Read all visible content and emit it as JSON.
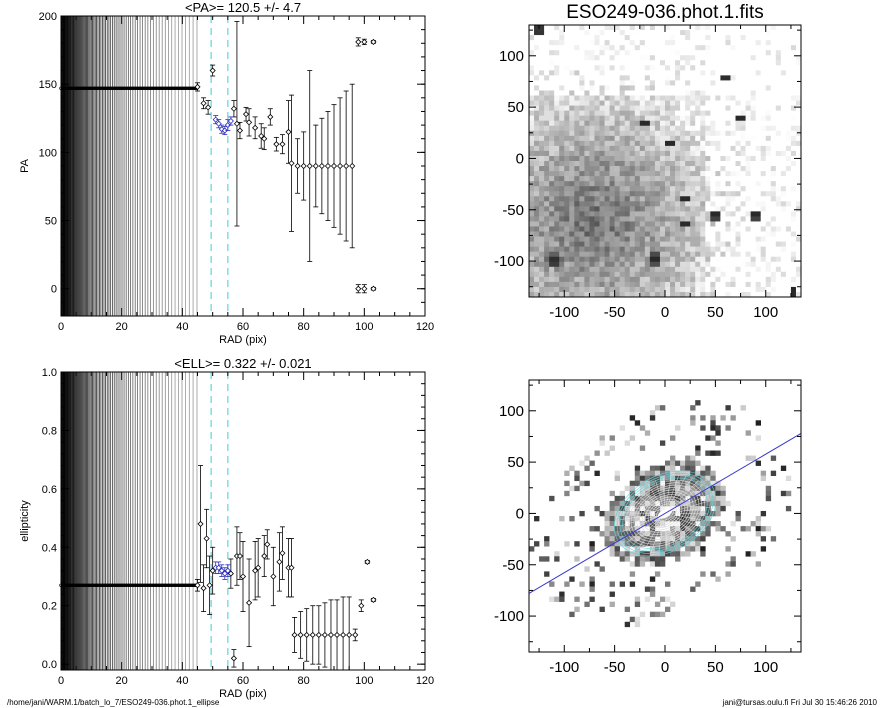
{
  "footer": {
    "left": "/home/jani/WARM.1/batch_lo_7/ESO249-036.phot.1_ellipse",
    "right": "jani@tursas.oulu.fi  Fri Jul 30 15:46:26 2010"
  },
  "chart_data": [
    {
      "type": "scatter",
      "title": "<PA>= 120.5 +/-   4.7",
      "xlabel": "RAD (pix)",
      "ylabel": "PA",
      "xlim": [
        0,
        120
      ],
      "ylim": [
        -20,
        200
      ],
      "xticks": [
        "0",
        "20",
        "40",
        "60",
        "80",
        "100",
        "120"
      ],
      "yticks": [
        "0",
        "50",
        "100",
        "150",
        "200"
      ],
      "ytick_values": [
        0,
        50,
        100,
        150,
        200
      ],
      "vlines_dashed": [
        49.5,
        55
      ],
      "band": {
        "x": [
          0,
          45
        ],
        "y": 147
      },
      "series": [
        {
          "color": "#000000",
          "points": [
            {
              "x": 45,
              "y": 148,
              "err": 3
            },
            {
              "x": 47,
              "y": 136,
              "err": 4
            },
            {
              "x": 48.5,
              "y": 133,
              "err": 5
            },
            {
              "x": 50,
              "y": 160,
              "err": 4
            },
            {
              "x": 57,
              "y": 132,
              "err": 6
            },
            {
              "x": 58,
              "y": 121,
              "err": 75
            },
            {
              "x": 59,
              "y": 116,
              "err": 6
            },
            {
              "x": 61,
              "y": 128,
              "err": 5
            },
            {
              "x": 62,
              "y": 122,
              "err": 10
            },
            {
              "x": 64,
              "y": 118,
              "err": 8
            },
            {
              "x": 66,
              "y": 112,
              "err": 9
            },
            {
              "x": 67,
              "y": 110,
              "err": 8
            },
            {
              "x": 69,
              "y": 126,
              "err": 6
            },
            {
              "x": 71,
              "y": 106,
              "err": 5
            },
            {
              "x": 73,
              "y": 106,
              "err": 7
            },
            {
              "x": 75,
              "y": 115,
              "err": 23
            },
            {
              "x": 76,
              "y": 92,
              "err": 50
            },
            {
              "x": 78,
              "y": 90,
              "err": 20
            },
            {
              "x": 80,
              "y": 90,
              "err": 25
            },
            {
              "x": 82,
              "y": 90,
              "err": 70
            },
            {
              "x": 84,
              "y": 90,
              "err": 30
            },
            {
              "x": 86,
              "y": 90,
              "err": 35
            },
            {
              "x": 88,
              "y": 90,
              "err": 40
            },
            {
              "x": 90,
              "y": 90,
              "err": 45
            },
            {
              "x": 92,
              "y": 90,
              "err": 50
            },
            {
              "x": 94,
              "y": 90,
              "err": 55
            },
            {
              "x": 96,
              "y": 90,
              "err": 60
            },
            {
              "x": 98,
              "y": 181,
              "err": 3
            },
            {
              "x": 100,
              "y": 181,
              "err": 2
            },
            {
              "x": 103,
              "y": 181,
              "err": 1
            },
            {
              "x": 98,
              "y": 0,
              "err": 3
            },
            {
              "x": 100,
              "y": 0,
              "err": 3
            },
            {
              "x": 103,
              "y": 0,
              "err": 1
            }
          ]
        },
        {
          "color": "#2b2bbf",
          "points": [
            {
              "x": 51,
              "y": 124,
              "err": 3
            },
            {
              "x": 52,
              "y": 121,
              "err": 3
            },
            {
              "x": 53,
              "y": 117,
              "err": 3
            },
            {
              "x": 54,
              "y": 116,
              "err": 3
            },
            {
              "x": 55,
              "y": 120,
              "err": 4
            },
            {
              "x": 56,
              "y": 123,
              "err": 3
            }
          ]
        }
      ]
    },
    {
      "type": "scatter",
      "title": "<ELL>= 0.322 +/-  0.021",
      "xlabel": "RAD (pix)",
      "ylabel": "ellipticity",
      "xlim": [
        0,
        120
      ],
      "ylim": [
        -0.02,
        1.0
      ],
      "xticks": [
        "0",
        "20",
        "40",
        "60",
        "80",
        "100",
        "120"
      ],
      "yticks": [
        "0.0",
        "0.2",
        "0.4",
        "0.6",
        "0.8",
        "1.0"
      ],
      "ytick_values": [
        0.0,
        0.2,
        0.4,
        0.6,
        0.8,
        1.0
      ],
      "vlines_dashed": [
        49.5,
        55
      ],
      "band": {
        "x": [
          0,
          45
        ],
        "y": 0.27
      },
      "series": [
        {
          "color": "#000000",
          "points": [
            {
              "x": 45,
              "y": 0.27,
              "err": 0.02
            },
            {
              "x": 46,
              "y": 0.48,
              "err": 0.2
            },
            {
              "x": 47,
              "y": 0.26,
              "err": 0.08
            },
            {
              "x": 48,
              "y": 0.43,
              "err": 0.1
            },
            {
              "x": 49,
              "y": 0.27,
              "err": 0.1
            },
            {
              "x": 50,
              "y": 0.32,
              "err": 0.08
            },
            {
              "x": 56,
              "y": 0.31,
              "err": 0.05
            },
            {
              "x": 57,
              "y": 0.02,
              "err": 0.03
            },
            {
              "x": 58,
              "y": 0.37,
              "err": 0.1
            },
            {
              "x": 59,
              "y": 0.37,
              "err": 0.08
            },
            {
              "x": 60,
              "y": 0.3,
              "err": 0.12
            },
            {
              "x": 62,
              "y": 0.21,
              "err": 0.15
            },
            {
              "x": 64,
              "y": 0.32,
              "err": 0.1
            },
            {
              "x": 65,
              "y": 0.33,
              "err": 0.1
            },
            {
              "x": 67,
              "y": 0.37,
              "err": 0.07
            },
            {
              "x": 68,
              "y": 0.41,
              "err": 0.05
            },
            {
              "x": 70,
              "y": 0.3,
              "err": 0.1
            },
            {
              "x": 72,
              "y": 0.35,
              "err": 0.1
            },
            {
              "x": 73,
              "y": 0.38,
              "err": 0.09
            },
            {
              "x": 75,
              "y": 0.33,
              "err": 0.1
            },
            {
              "x": 76,
              "y": 0.33,
              "err": 0.1
            },
            {
              "x": 77,
              "y": 0.1,
              "err": 0.06
            },
            {
              "x": 79,
              "y": 0.1,
              "err": 0.08
            },
            {
              "x": 81,
              "y": 0.1,
              "err": 0.09
            },
            {
              "x": 83,
              "y": 0.1,
              "err": 0.1
            },
            {
              "x": 85,
              "y": 0.1,
              "err": 0.1
            },
            {
              "x": 87,
              "y": 0.1,
              "err": 0.11
            },
            {
              "x": 89,
              "y": 0.1,
              "err": 0.12
            },
            {
              "x": 91,
              "y": 0.1,
              "err": 0.12
            },
            {
              "x": 93,
              "y": 0.1,
              "err": 0.13
            },
            {
              "x": 95,
              "y": 0.1,
              "err": 0.13
            },
            {
              "x": 97,
              "y": 0.1,
              "err": 0.02
            },
            {
              "x": 99,
              "y": 0.2,
              "err": 0.02
            },
            {
              "x": 101,
              "y": 0.35,
              "err": 0.005
            },
            {
              "x": 103,
              "y": 0.22,
              "err": 0.005
            }
          ]
        },
        {
          "color": "#2b2bbf",
          "points": [
            {
              "x": 51,
              "y": 0.33,
              "err": 0.02
            },
            {
              "x": 52,
              "y": 0.33,
              "err": 0.02
            },
            {
              "x": 53,
              "y": 0.32,
              "err": 0.02
            },
            {
              "x": 54,
              "y": 0.31,
              "err": 0.02
            },
            {
              "x": 55,
              "y": 0.32,
              "err": 0.02
            }
          ]
        }
      ]
    },
    {
      "type": "heatmap",
      "title": "ESO249-036.phot.1.fits",
      "xlim": [
        -135,
        135
      ],
      "ylim": [
        -135,
        130
      ],
      "xticks": [
        "-100",
        "-50",
        "0",
        "50",
        "100"
      ],
      "xtick_values": [
        -100,
        -50,
        0,
        50,
        100
      ],
      "yticks": [
        "-100",
        "-50",
        "0",
        "50",
        "100"
      ],
      "ytick_values": [
        -100,
        -50,
        0,
        50,
        100
      ],
      "colormap": "gray"
    },
    {
      "type": "heatmap",
      "title": "",
      "xlim": [
        -135,
        135
      ],
      "ylim": [
        -135,
        130
      ],
      "xticks": [
        "-100",
        "-50",
        "0",
        "50",
        "100"
      ],
      "xtick_values": [
        -100,
        -50,
        0,
        50,
        100
      ],
      "yticks": [
        "-100",
        "-50",
        "0",
        "50",
        "100"
      ],
      "ytick_values": [
        -100,
        -50,
        0,
        50,
        100
      ],
      "colormap": "gray",
      "overlay": {
        "line_color": "#3b3bcf",
        "line_angle_deg": 30,
        "ellipse_color": "#5fd0d8"
      }
    }
  ]
}
